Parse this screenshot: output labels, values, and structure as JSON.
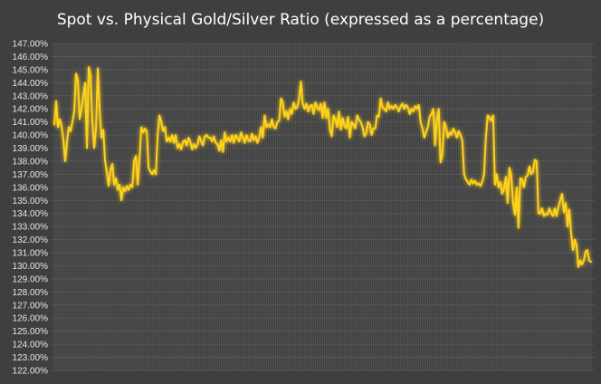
{
  "chart_data": {
    "type": "line",
    "title": "Spot vs. Physical Gold/Silver Ratio (expressed as a percentage)",
    "xlabel": "",
    "ylabel": "",
    "ylim": [
      122,
      147
    ],
    "y_tick_step": 1,
    "y_tick_format": "percent_2dp",
    "x_tick_labels": false,
    "vertical_gridlines": true,
    "horizontal_gridlines": true,
    "legend": "none",
    "colors": {
      "background": "#3f3f3f",
      "plot_area": "#404040",
      "gridline": "#5a5a5a",
      "line": "#ffd21a",
      "glow": "#ffb000",
      "title": "#ffffff",
      "tick_text": "#e6e6e6"
    },
    "series": [
      {
        "values": [
          140.8,
          142.6,
          140.6,
          141.2,
          140.7,
          139.6,
          138.0,
          139.5,
          140.6,
          140.3,
          141.0,
          141.8,
          144.7,
          144.2,
          141.2,
          142.0,
          143.0,
          144.0,
          139.0,
          145.2,
          144.6,
          141.0,
          139.0,
          140.5,
          145.1,
          142.0,
          139.8,
          140.4,
          138.0,
          137.1,
          136.1,
          137.3,
          137.8,
          136.2,
          136.7,
          135.8,
          136.2,
          135.0,
          136.0,
          135.7,
          136.1,
          135.8,
          136.2,
          136.0,
          138.0,
          138.4,
          136.2,
          138.2,
          140.6,
          140.2,
          140.5,
          140.3,
          137.5,
          137.2,
          137.0,
          137.3,
          137.0,
          140.0,
          141.5,
          141.0,
          140.3,
          140.6,
          139.5,
          139.8,
          139.5,
          140.0,
          139.4,
          140.0,
          139.0,
          139.3,
          138.9,
          139.5,
          139.6,
          139.2,
          139.8,
          139.5,
          138.9,
          139.3,
          139.0,
          139.3,
          139.9,
          139.5,
          139.2,
          139.9,
          140.0,
          139.8,
          139.8,
          139.5,
          139.9,
          139.4,
          139.3,
          138.8,
          139.6,
          138.7,
          140.2,
          139.5,
          139.8,
          139.5,
          140.0,
          139.4,
          140.0,
          139.8,
          139.5,
          140.2,
          139.8,
          139.4,
          140.0,
          139.6,
          139.5,
          140.1,
          139.6,
          139.9,
          139.4,
          139.8,
          140.6,
          139.8,
          141.5,
          140.6,
          140.8,
          140.6,
          141.2,
          140.6,
          140.5,
          141.0,
          141.1,
          142.8,
          142.5,
          141.4,
          141.8,
          141.2,
          142.0,
          141.6,
          142.5,
          142.0,
          142.1,
          142.8,
          144.1,
          142.4,
          142.0,
          142.4,
          141.8,
          142.2,
          142.3,
          141.6,
          142.5,
          142.1,
          141.9,
          142.4,
          141.3,
          142.5,
          141.3,
          142.0,
          140.4,
          139.9,
          141.5,
          141.2,
          140.6,
          141.8,
          140.4,
          141.3,
          140.7,
          140.5,
          141.4,
          139.8,
          141.0,
          140.8,
          140.5,
          141.5,
          141.2,
          141.0,
          140.6,
          139.9,
          140.1,
          141.0,
          140.8,
          140.0,
          140.5,
          140.5,
          141.5,
          141.4,
          142.8,
          142.1,
          142.0,
          141.8,
          142.5,
          142.0,
          142.2,
          142.0,
          142.3,
          142.1,
          141.8,
          142.2,
          142.4,
          142.0,
          142.3,
          142.1,
          141.6,
          142.0,
          141.8,
          142.2,
          142.0,
          142.3,
          141.0,
          140.5,
          139.8,
          140.2,
          140.6,
          141.4,
          141.6,
          142.0,
          139.2,
          141.2,
          142.0,
          137.9,
          138.5,
          141.0,
          140.6,
          139.8,
          140.2,
          140.0,
          140.5,
          140.2,
          139.8,
          140.3,
          140.0,
          139.6,
          137.0,
          136.6,
          136.4,
          136.2,
          136.6,
          136.3,
          136.5,
          136.2,
          136.3,
          136.1,
          136.4,
          137.0,
          139.8,
          141.5,
          141.3,
          141.1,
          141.5,
          136.2,
          137.0,
          136.0,
          136.4,
          135.5,
          135.9,
          136.8,
          134.8,
          137.5,
          136.9,
          134.8,
          133.9,
          136.0,
          132.9,
          136.7,
          136.6,
          136.0,
          136.8,
          136.9,
          137.6,
          137.0,
          137.2,
          138.1,
          138.0,
          134.0,
          134.0,
          134.4,
          133.8,
          134.0,
          133.9,
          134.4,
          134.0,
          133.8,
          134.4,
          133.8,
          134.5,
          135.0,
          135.5,
          134.1,
          134.8,
          133.0,
          134.3,
          132.5,
          131.2,
          132.0,
          131.6,
          129.9,
          130.4,
          130.1,
          130.4,
          131.1,
          131.2,
          130.4,
          130.3
        ]
      }
    ]
  }
}
